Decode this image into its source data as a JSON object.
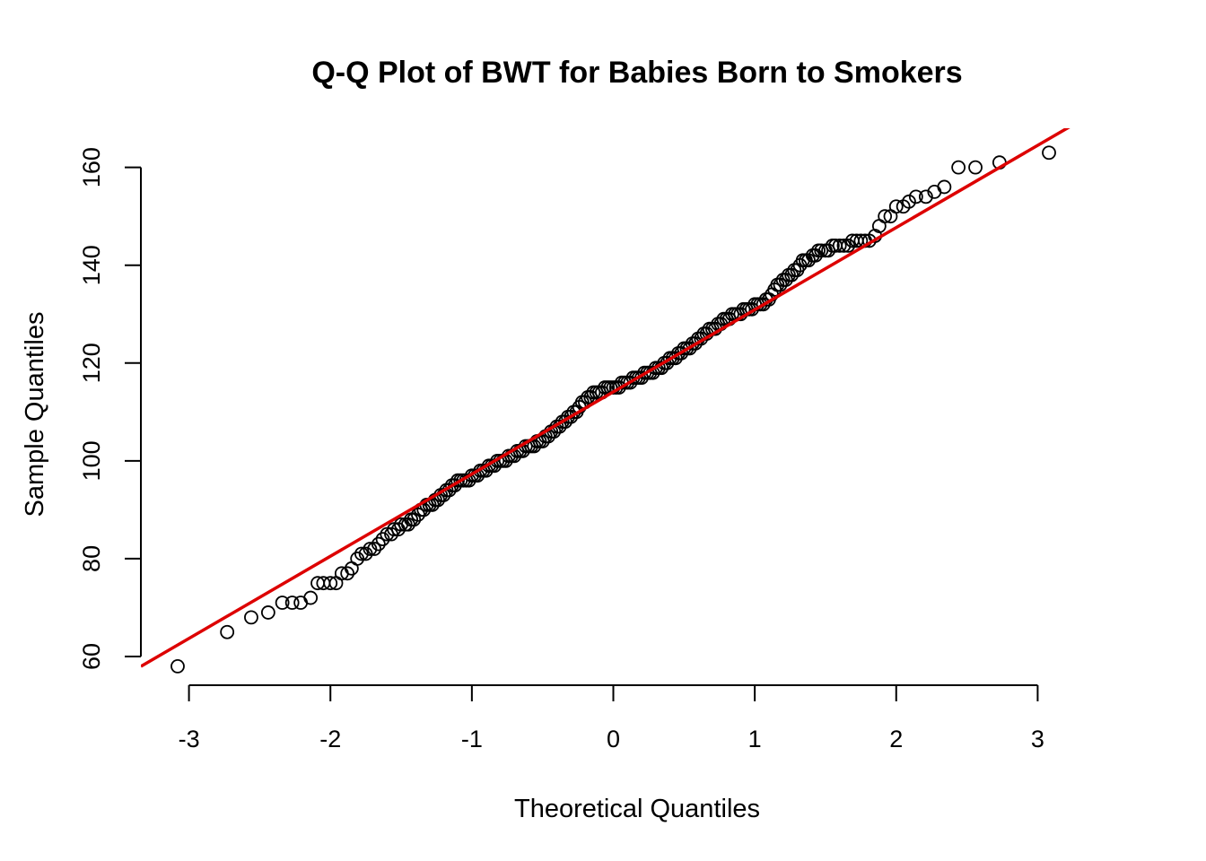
{
  "chart_data": {
    "type": "scatter",
    "title": "Q-Q Plot of BWT for Babies Born to Smokers",
    "xlabel": "Theoretical Quantiles",
    "ylabel": "Sample Quantiles",
    "xlim": [
      -3.34,
      3.34
    ],
    "ylim": [
      54.5,
      168
    ],
    "x_ticks": [
      -3,
      -2,
      -1,
      0,
      1,
      2,
      3
    ],
    "y_ticks": [
      60,
      80,
      100,
      120,
      140,
      160
    ],
    "reference_line": {
      "intercept": 114.1,
      "slope": 16.8,
      "color": "#dd0000"
    },
    "point_color": "#000000",
    "series": [
      {
        "points": [
          [
            -3.08,
            58
          ],
          [
            -2.73,
            65
          ],
          [
            -2.56,
            68
          ],
          [
            -2.44,
            69
          ],
          [
            -2.34,
            71
          ],
          [
            -2.27,
            71
          ],
          [
            -2.21,
            71
          ],
          [
            -2.14,
            72
          ],
          [
            -2.09,
            75
          ],
          [
            -2.05,
            75
          ],
          [
            -2.0,
            75
          ],
          [
            -1.96,
            75
          ],
          [
            -1.92,
            77
          ],
          [
            -1.88,
            77
          ],
          [
            -1.85,
            78
          ],
          [
            -1.81,
            80
          ],
          [
            -1.78,
            81
          ],
          [
            -1.75,
            81
          ],
          [
            -1.72,
            82
          ],
          [
            -1.69,
            82
          ],
          [
            -1.66,
            83
          ],
          [
            -1.63,
            84
          ],
          [
            -1.6,
            85
          ],
          [
            -1.57,
            85
          ],
          [
            -1.55,
            86
          ],
          [
            -1.52,
            86
          ],
          [
            -1.5,
            87
          ],
          [
            -1.47,
            87
          ],
          [
            -1.45,
            87
          ],
          [
            -1.43,
            88
          ],
          [
            -1.41,
            88
          ],
          [
            -1.38,
            89
          ],
          [
            -1.36,
            90
          ],
          [
            -1.34,
            90
          ],
          [
            -1.32,
            91
          ],
          [
            -1.3,
            91
          ],
          [
            -1.28,
            91
          ],
          [
            -1.26,
            92
          ],
          [
            -1.24,
            92
          ],
          [
            -1.22,
            93
          ],
          [
            -1.2,
            93
          ],
          [
            -1.18,
            94
          ],
          [
            -1.16,
            94
          ],
          [
            -1.14,
            95
          ],
          [
            -1.12,
            95
          ],
          [
            -1.1,
            96
          ],
          [
            -1.08,
            96
          ],
          [
            -1.06,
            96
          ],
          [
            -1.04,
            96
          ],
          [
            -1.02,
            96
          ],
          [
            -1.0,
            97
          ],
          [
            -0.98,
            97
          ],
          [
            -0.96,
            97
          ],
          [
            -0.94,
            98
          ],
          [
            -0.92,
            98
          ],
          [
            -0.9,
            98
          ],
          [
            -0.88,
            99
          ],
          [
            -0.86,
            99
          ],
          [
            -0.84,
            99
          ],
          [
            -0.82,
            100
          ],
          [
            -0.8,
            100
          ],
          [
            -0.78,
            100
          ],
          [
            -0.76,
            100
          ],
          [
            -0.74,
            101
          ],
          [
            -0.72,
            101
          ],
          [
            -0.7,
            101
          ],
          [
            -0.68,
            102
          ],
          [
            -0.66,
            102
          ],
          [
            -0.64,
            102
          ],
          [
            -0.62,
            103
          ],
          [
            -0.6,
            103
          ],
          [
            -0.58,
            103
          ],
          [
            -0.56,
            103
          ],
          [
            -0.54,
            104
          ],
          [
            -0.52,
            104
          ],
          [
            -0.5,
            104
          ],
          [
            -0.48,
            105
          ],
          [
            -0.46,
            105
          ],
          [
            -0.44,
            106
          ],
          [
            -0.42,
            106
          ],
          [
            -0.4,
            107
          ],
          [
            -0.38,
            107
          ],
          [
            -0.36,
            108
          ],
          [
            -0.34,
            108
          ],
          [
            -0.32,
            109
          ],
          [
            -0.3,
            109
          ],
          [
            -0.28,
            110
          ],
          [
            -0.26,
            110
          ],
          [
            -0.24,
            111
          ],
          [
            -0.22,
            112
          ],
          [
            -0.2,
            112
          ],
          [
            -0.18,
            113
          ],
          [
            -0.16,
            113
          ],
          [
            -0.14,
            114
          ],
          [
            -0.12,
            114
          ],
          [
            -0.1,
            114
          ],
          [
            -0.08,
            114
          ],
          [
            -0.06,
            115
          ],
          [
            -0.04,
            115
          ],
          [
            -0.02,
            115
          ],
          [
            0.0,
            115
          ],
          [
            0.02,
            115
          ],
          [
            0.04,
            115
          ],
          [
            0.06,
            116
          ],
          [
            0.08,
            116
          ],
          [
            0.1,
            116
          ],
          [
            0.12,
            116
          ],
          [
            0.14,
            117
          ],
          [
            0.16,
            117
          ],
          [
            0.18,
            117
          ],
          [
            0.2,
            117
          ],
          [
            0.22,
            118
          ],
          [
            0.24,
            118
          ],
          [
            0.26,
            118
          ],
          [
            0.28,
            118
          ],
          [
            0.3,
            119
          ],
          [
            0.32,
            119
          ],
          [
            0.34,
            119
          ],
          [
            0.36,
            120
          ],
          [
            0.38,
            120
          ],
          [
            0.4,
            121
          ],
          [
            0.42,
            121
          ],
          [
            0.44,
            121
          ],
          [
            0.46,
            122
          ],
          [
            0.48,
            122
          ],
          [
            0.5,
            123
          ],
          [
            0.52,
            123
          ],
          [
            0.54,
            123
          ],
          [
            0.56,
            124
          ],
          [
            0.58,
            124
          ],
          [
            0.6,
            125
          ],
          [
            0.62,
            125
          ],
          [
            0.64,
            126
          ],
          [
            0.66,
            126
          ],
          [
            0.68,
            127
          ],
          [
            0.7,
            127
          ],
          [
            0.72,
            127
          ],
          [
            0.74,
            128
          ],
          [
            0.76,
            128
          ],
          [
            0.78,
            129
          ],
          [
            0.8,
            129
          ],
          [
            0.82,
            129
          ],
          [
            0.84,
            130
          ],
          [
            0.86,
            130
          ],
          [
            0.88,
            130
          ],
          [
            0.9,
            130
          ],
          [
            0.92,
            131
          ],
          [
            0.94,
            131
          ],
          [
            0.96,
            131
          ],
          [
            0.98,
            131
          ],
          [
            1.0,
            132
          ],
          [
            1.02,
            132
          ],
          [
            1.04,
            132
          ],
          [
            1.06,
            132
          ],
          [
            1.08,
            133
          ],
          [
            1.1,
            133
          ],
          [
            1.12,
            134
          ],
          [
            1.14,
            135
          ],
          [
            1.16,
            136
          ],
          [
            1.18,
            136
          ],
          [
            1.2,
            137
          ],
          [
            1.22,
            137
          ],
          [
            1.24,
            138
          ],
          [
            1.26,
            138
          ],
          [
            1.28,
            139
          ],
          [
            1.3,
            139
          ],
          [
            1.32,
            140
          ],
          [
            1.34,
            141
          ],
          [
            1.36,
            141
          ],
          [
            1.38,
            141
          ],
          [
            1.41,
            142
          ],
          [
            1.43,
            142
          ],
          [
            1.45,
            143
          ],
          [
            1.47,
            143
          ],
          [
            1.5,
            143
          ],
          [
            1.52,
            143
          ],
          [
            1.55,
            144
          ],
          [
            1.57,
            144
          ],
          [
            1.6,
            144
          ],
          [
            1.63,
            144
          ],
          [
            1.66,
            144
          ],
          [
            1.69,
            145
          ],
          [
            1.72,
            145
          ],
          [
            1.75,
            145
          ],
          [
            1.78,
            145
          ],
          [
            1.81,
            145
          ],
          [
            1.85,
            146
          ],
          [
            1.88,
            148
          ],
          [
            1.92,
            150
          ],
          [
            1.96,
            150
          ],
          [
            2.0,
            152
          ],
          [
            2.05,
            152
          ],
          [
            2.09,
            153
          ],
          [
            2.14,
            154
          ],
          [
            2.21,
            154
          ],
          [
            2.27,
            155
          ],
          [
            2.34,
            156
          ],
          [
            2.44,
            160
          ],
          [
            2.56,
            160
          ],
          [
            2.73,
            161
          ],
          [
            3.08,
            163
          ]
        ]
      }
    ]
  }
}
